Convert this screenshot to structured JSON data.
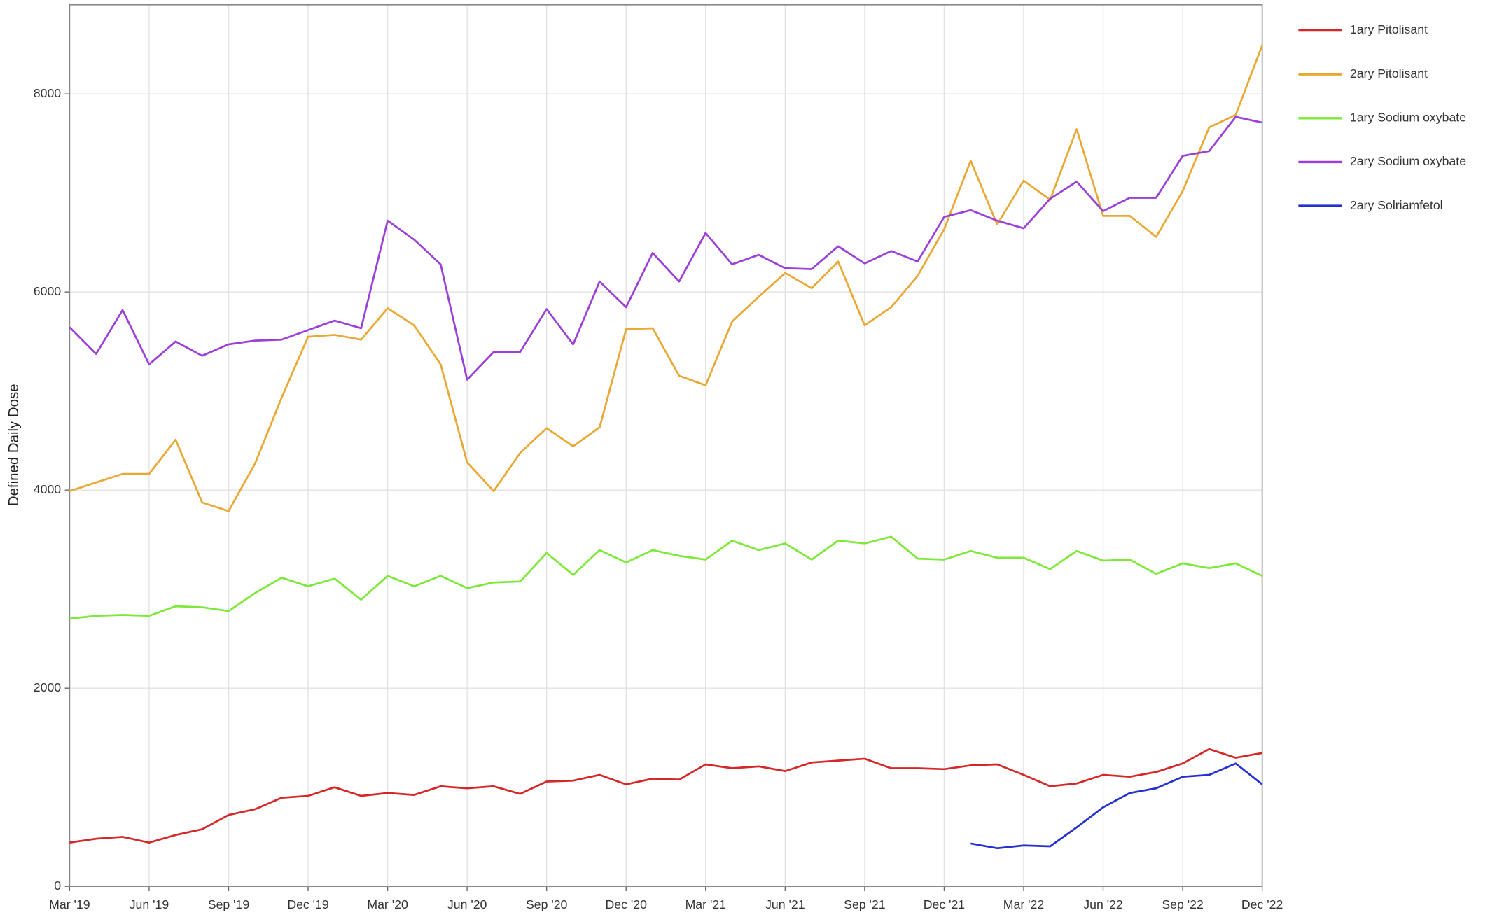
{
  "chart_data": {
    "type": "line",
    "y_label": "Defined Daily Dose",
    "categories": [
      "Mar '19",
      null,
      null,
      "Jun '19",
      null,
      null,
      "Sep '19",
      null,
      null,
      "Dec '19",
      null,
      null,
      "Mar '20",
      null,
      null,
      "Jun '20",
      null,
      null,
      "Sep '20",
      null,
      null,
      "Dec '20",
      null,
      null,
      "Mar '21",
      null,
      null,
      "Jun '21",
      null,
      null,
      "Sep '21",
      null,
      null,
      "Dec '21",
      null,
      null,
      "Mar '22",
      null,
      null,
      "Jun '22",
      null,
      null,
      "Sep '22",
      null,
      null,
      "Dec '22"
    ],
    "series": [
      {
        "name": "1ary Pitolisant",
        "color": "#d62728",
        "values": [
          442,
          481,
          500,
          442,
          519,
          577,
          721,
          779,
          894,
          913,
          1000,
          913,
          942,
          923,
          1010,
          990,
          1010,
          933,
          1058,
          1067,
          1125,
          1029,
          1087,
          1077,
          1231,
          1192,
          1211,
          1163,
          1250,
          1269,
          1288,
          1192,
          1192,
          1183,
          1221,
          1231,
          1125,
          1010,
          1038,
          1125,
          1106,
          1154,
          1240,
          1385,
          1298,
          1346
        ]
      },
      {
        "name": "2ary Pitolisant",
        "color": "#e8a833",
        "values": [
          3990,
          4077,
          4163,
          4163,
          4509,
          3875,
          3788,
          4269,
          4932,
          5548,
          5567,
          5519,
          5836,
          5663,
          5269,
          4279,
          3990,
          4375,
          4625,
          4442,
          4634,
          5625,
          5634,
          5154,
          5058,
          5702,
          5952,
          6192,
          6038,
          6307,
          5663,
          5846,
          6163,
          6634,
          7326,
          6682,
          7125,
          6932,
          7644,
          6769,
          6769,
          6557,
          7019,
          7663,
          7788,
          8490
        ]
      },
      {
        "name": "1ary Sodium oxybate",
        "color": "#7ee83a",
        "values": [
          2702,
          2731,
          2740,
          2731,
          2827,
          2817,
          2779,
          2961,
          3115,
          3029,
          3106,
          2894,
          3134,
          3029,
          3134,
          3010,
          3067,
          3077,
          3365,
          3144,
          3394,
          3269,
          3394,
          3336,
          3298,
          3490,
          3394,
          3461,
          3298,
          3490,
          3461,
          3529,
          3308,
          3298,
          3385,
          3317,
          3317,
          3202,
          3385,
          3288,
          3298,
          3154,
          3260,
          3212,
          3260,
          3134
        ]
      },
      {
        "name": "2ary Sodium oxybate",
        "color": "#9b3fd8",
        "values": [
          5644,
          5375,
          5817,
          5269,
          5500,
          5356,
          5471,
          5509,
          5519,
          5615,
          5711,
          5634,
          6721,
          6529,
          6279,
          5115,
          5394,
          5394,
          5827,
          5471,
          6106,
          5846,
          6394,
          6106,
          6596,
          6279,
          6375,
          6240,
          6231,
          6461,
          6288,
          6413,
          6308,
          6759,
          6827,
          6721,
          6644,
          6942,
          7115,
          6817,
          6952,
          6952,
          7375,
          7423,
          7769,
          7711
        ]
      },
      {
        "name": "2ary Solriamfetol",
        "color": "#2430d0",
        "values": [
          null,
          null,
          null,
          null,
          null,
          null,
          null,
          null,
          null,
          null,
          null,
          null,
          null,
          null,
          null,
          null,
          null,
          null,
          null,
          null,
          null,
          null,
          null,
          null,
          null,
          null,
          null,
          null,
          null,
          null,
          null,
          null,
          null,
          null,
          433,
          385,
          413,
          404,
          596,
          798,
          942,
          990,
          1106,
          1125,
          1240,
          1029
        ]
      }
    ],
    "ylim": [
      0,
      8900
    ],
    "yticks": [
      0,
      2000,
      4000,
      6000,
      8000
    ],
    "grid": true,
    "legend": "right"
  }
}
